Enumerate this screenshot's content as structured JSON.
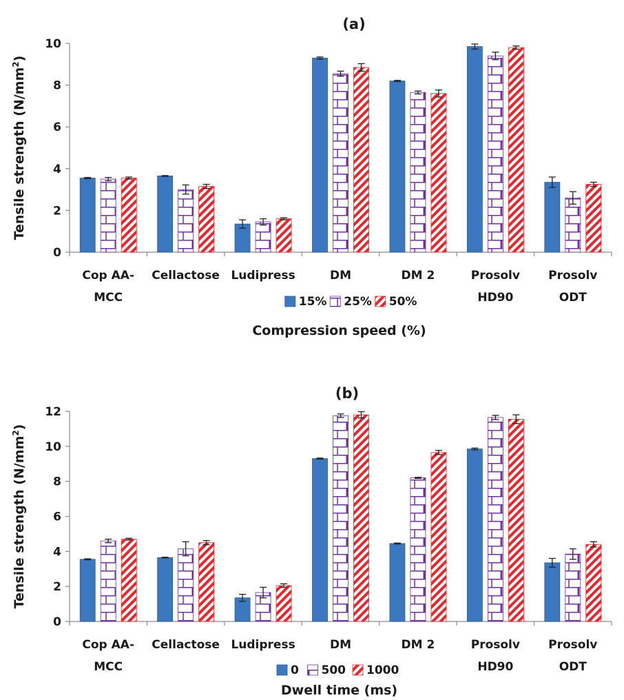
{
  "chart_data": [
    {
      "panel_label": "(a)",
      "type": "bar",
      "ylabel": "Tensile strength (N/mm²)",
      "ylabel_main": "Tensile strength (N/mm",
      "ylabel_sup": "2",
      "ylabel_tail": ")",
      "xlabel": "Compression speed (%)",
      "ylim": [
        0,
        10
      ],
      "yticks": [
        "0",
        "2",
        "4",
        "6",
        "8",
        "10"
      ],
      "grid": false,
      "legend_position": "bottom-center",
      "categories": [
        [
          "Cop AA-",
          "MCC"
        ],
        [
          "Cellactose"
        ],
        [
          "Ludipress"
        ],
        [
          "DM"
        ],
        [
          "DM 2"
        ],
        [
          "Prosolv",
          "HD90"
        ],
        [
          "Prosolv",
          "ODT"
        ]
      ],
      "series": [
        {
          "name": "15%",
          "pattern": "solid",
          "values": [
            3.55,
            3.65,
            1.35,
            9.3,
            8.2,
            9.85,
            3.35
          ],
          "errors": [
            0.03,
            0.02,
            0.2,
            0.05,
            0.03,
            0.12,
            0.25
          ]
        },
        {
          "name": "25%",
          "pattern": "brick",
          "values": [
            3.5,
            3.0,
            1.45,
            8.55,
            7.65,
            9.4,
            2.6
          ],
          "errors": [
            0.08,
            0.22,
            0.15,
            0.12,
            0.07,
            0.18,
            0.3
          ]
        },
        {
          "name": "50%",
          "pattern": "stripe",
          "values": [
            3.55,
            3.15,
            1.6,
            8.85,
            7.6,
            9.8,
            3.25
          ],
          "errors": [
            0.05,
            0.1,
            0.05,
            0.18,
            0.17,
            0.08,
            0.1
          ]
        }
      ]
    },
    {
      "panel_label": "(b)",
      "type": "bar",
      "ylabel": "Tensile strength (N/mm²)",
      "ylabel_main": "Tensile strength (N/mm",
      "ylabel_sup": "2",
      "ylabel_tail": ")",
      "xlabel": "Dwell time (ms)",
      "ylim": [
        0,
        12
      ],
      "yticks": [
        "0",
        "2",
        "4",
        "6",
        "8",
        "10",
        "12"
      ],
      "grid": false,
      "legend_position": "bottom-center",
      "categories": [
        [
          "Cop AA-",
          "MCC"
        ],
        [
          "Cellactose"
        ],
        [
          "Ludipress"
        ],
        [
          "DM"
        ],
        [
          "DM 2"
        ],
        [
          "Prosolv",
          "HD90"
        ],
        [
          "Prosolv",
          "ODT"
        ]
      ],
      "series": [
        {
          "name": "0",
          "pattern": "solid",
          "values": [
            3.55,
            3.65,
            1.35,
            9.3,
            4.45,
            9.85,
            3.35
          ],
          "errors": [
            0.03,
            0.02,
            0.2,
            0.03,
            0.03,
            0.05,
            0.25
          ]
        },
        {
          "name": "500",
          "pattern": "brick",
          "values": [
            4.6,
            4.15,
            1.65,
            11.75,
            8.2,
            11.65,
            3.85
          ],
          "errors": [
            0.1,
            0.4,
            0.3,
            0.1,
            0.03,
            0.12,
            0.3
          ]
        },
        {
          "name": "1000",
          "pattern": "stripe",
          "values": [
            4.7,
            4.5,
            2.05,
            11.8,
            9.65,
            11.55,
            4.4
          ],
          "errors": [
            0.05,
            0.12,
            0.1,
            0.18,
            0.12,
            0.25,
            0.15
          ]
        }
      ]
    }
  ],
  "colors": {
    "solid_fill": "#3c78c0",
    "solid_edge": "#2d5a91",
    "brick": "#7030a0",
    "stripe": "#e8262b",
    "axis": "#8c8c8c",
    "text": "#1a1a1a",
    "error_bar": "#222222"
  }
}
